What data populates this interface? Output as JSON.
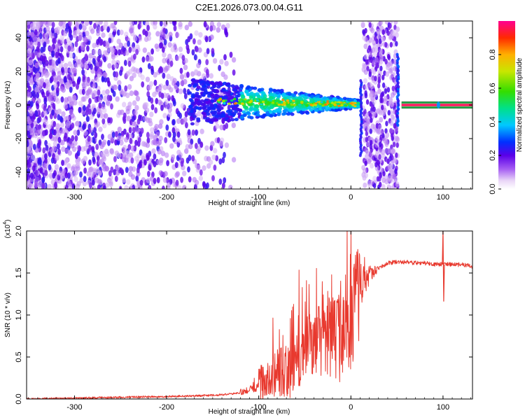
{
  "title": "C2E1.2026.073.00.04.G11",
  "chart_data": [
    {
      "type": "heatmap",
      "name": "spectrogram",
      "xlabel": "Height of straight line (km)",
      "ylabel": "Frequency (Hz)",
      "xlim": [
        -352,
        132
      ],
      "ylim": [
        -50,
        50
      ],
      "xticks": [
        -300,
        -200,
        -100,
        0,
        100
      ],
      "xtick_labels": [
        "-300",
        "-200",
        "-100",
        "0",
        "100"
      ],
      "yticks": [
        -40,
        -20,
        0,
        20,
        40
      ],
      "ytick_labels": [
        "-40",
        "-20",
        "0",
        "20",
        "40"
      ],
      "colorbar": {
        "label": "Normalized spectral amplitude",
        "range": [
          0,
          1
        ],
        "ticks": [
          0.0,
          0.2,
          0.4,
          0.6,
          0.8
        ],
        "tick_labels": [
          "0.0",
          "0.2",
          "0.4",
          "0.6",
          "0.8"
        ]
      },
      "regions": [
        {
          "feature": "scattered noise",
          "x_range": [
            -352,
            -130
          ],
          "freq_range": [
            -50,
            50
          ],
          "amplitude": 0.15
        },
        {
          "feature": "tone emergence",
          "x_range": [
            -160,
            10
          ],
          "freq_center": 2,
          "amplitude": 0.45
        },
        {
          "feature": "noise band",
          "x_range": [
            14,
            50
          ],
          "freq_range": [
            -50,
            50
          ],
          "amplitude": 0.12
        },
        {
          "feature": "steady tone",
          "x_range": [
            55,
            132
          ],
          "freq_center": 0,
          "amplitude": 1.0
        }
      ]
    },
    {
      "type": "line",
      "name": "snr",
      "xlabel": "Height of straight line (km)",
      "ylabel": "SNR (10 * v/v)",
      "y_multiplier": "(x10",
      "y_multiplier_exp": "4",
      "y_multiplier_close": ")",
      "xlim": [
        -352,
        132
      ],
      "ylim": [
        0,
        2.0
      ],
      "xticks": [
        -300,
        -200,
        -100,
        0,
        100
      ],
      "xtick_labels": [
        "-300",
        "-200",
        "-100",
        "0",
        "100"
      ],
      "yticks": [
        0.0,
        0.5,
        1.0,
        1.5,
        2.0
      ],
      "ytick_labels": [
        "0.0",
        "0.5",
        "1.0",
        "1.5",
        "2.0"
      ],
      "color": "#e8392e",
      "series": [
        {
          "name": "SNR",
          "x": [
            -352,
            -300,
            -250,
            -200,
            -160,
            -140,
            -120,
            -100,
            -90,
            -80,
            -70,
            -60,
            -50,
            -40,
            -30,
            -20,
            -10,
            0,
            10,
            20,
            30,
            40,
            50,
            60,
            70,
            80,
            90,
            100,
            110,
            120,
            132
          ],
          "y": [
            0.0,
            0.01,
            0.02,
            0.03,
            0.04,
            0.05,
            0.07,
            0.15,
            0.25,
            0.32,
            0.3,
            0.4,
            0.6,
            0.7,
            0.7,
            0.75,
            0.7,
            0.9,
            1.3,
            1.45,
            1.55,
            1.62,
            1.63,
            1.63,
            1.62,
            1.62,
            1.6,
            1.61,
            1.6,
            1.6,
            1.58
          ]
        }
      ],
      "spikes": [
        {
          "x": 100,
          "y_max": 2.0,
          "y_min": 1.16
        }
      ]
    }
  ]
}
